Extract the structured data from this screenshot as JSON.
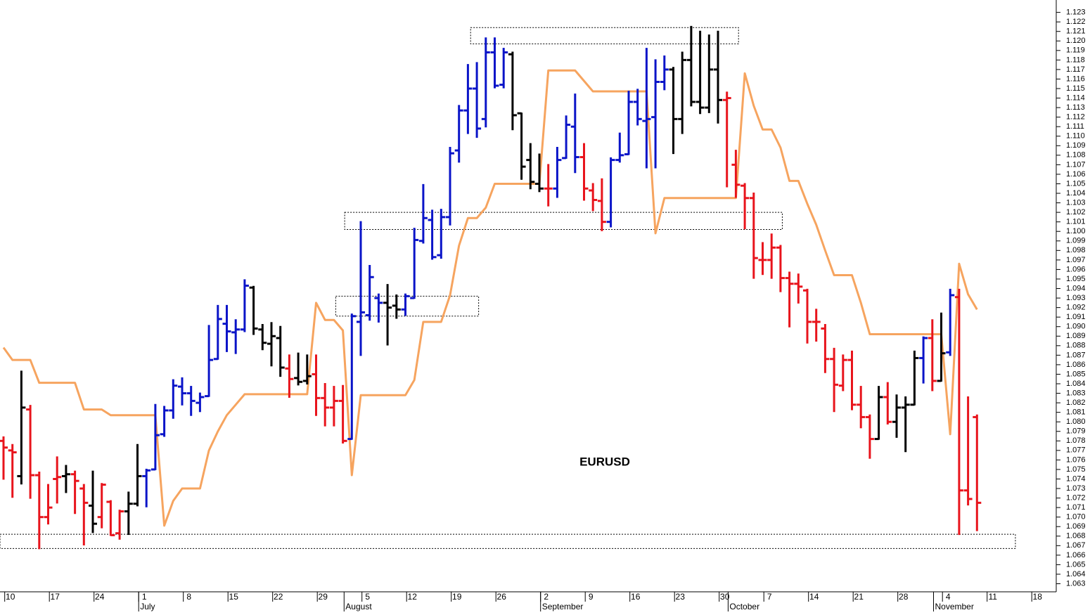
{
  "chart_data": {
    "type": "ohlc",
    "title": "EURUSD",
    "categories": [
      null,
      "10",
      null,
      null,
      null,
      null,
      "17",
      null,
      null,
      null,
      null,
      "24",
      null,
      null,
      null,
      null,
      "1",
      null,
      null,
      null,
      null,
      "8",
      null,
      null,
      null,
      null,
      "15",
      null,
      null,
      null,
      null,
      "22",
      null,
      null,
      null,
      null,
      "29",
      null,
      null,
      null,
      null,
      "5",
      null,
      null,
      null,
      null,
      "12",
      null,
      null,
      null,
      null,
      "19",
      null,
      null,
      null,
      null,
      "26",
      null,
      null,
      null,
      null,
      "2",
      null,
      null,
      null,
      null,
      "9",
      null,
      null,
      null,
      null,
      "16",
      null,
      null,
      null,
      null,
      "23",
      null,
      null,
      null,
      null,
      "30",
      null,
      null,
      null,
      null,
      "7",
      null,
      null,
      null,
      null,
      "14",
      null,
      null,
      null,
      null,
      "21",
      null,
      null,
      null,
      null,
      "28",
      null,
      null,
      null,
      null,
      "4",
      null,
      null,
      null,
      null,
      "11",
      null,
      null,
      null,
      null,
      "18",
      null
    ],
    "months": [
      null,
      null,
      null,
      null,
      null,
      null,
      null,
      null,
      null,
      null,
      null,
      null,
      null,
      null,
      null,
      null,
      "July",
      null,
      null,
      null,
      null,
      null,
      null,
      null,
      null,
      null,
      null,
      null,
      null,
      null,
      null,
      null,
      null,
      null,
      null,
      null,
      null,
      null,
      null,
      "August",
      null,
      null,
      null,
      null,
      null,
      null,
      null,
      null,
      null,
      null,
      null,
      null,
      null,
      null,
      null,
      null,
      null,
      null,
      null,
      null,
      null,
      "September",
      null,
      null,
      null,
      null,
      null,
      null,
      null,
      null,
      null,
      null,
      null,
      null,
      null,
      null,
      null,
      null,
      null,
      null,
      null,
      null,
      "October",
      null,
      null,
      null,
      null,
      null,
      null,
      null,
      null,
      null,
      null,
      null,
      null,
      null,
      null,
      null,
      null,
      null,
      null,
      null,
      null,
      null,
      null,
      "November",
      null,
      null,
      null,
      null,
      null,
      null,
      null,
      null,
      null,
      null,
      null,
      null
    ],
    "open": [
      1.078,
      1.077,
      1.0743,
      1.0813,
      1.0744,
      1.07,
      1.074,
      1.0743,
      1.0745,
      1.073,
      1.0712,
      1.07,
      1.0716,
      1.0683,
      1.0706,
      1.0714,
      1.0743,
      1.075,
      1.0787,
      1.0812,
      1.0837,
      1.083,
      1.082,
      1.0827,
      1.0866,
      1.0903,
      1.0894,
      1.0897,
      1.0941,
      1.0897,
      1.0882,
      1.0888,
      1.0856,
      1.0846,
      1.0843,
      1.085,
      1.0825,
      1.0815,
      1.0822,
      1.0782,
      1.0905,
      1.0912,
      1.093,
      1.0925,
      1.0922,
      1.0918,
      1.093,
      1.099,
      1.1012,
      1.0975,
      1.1015,
      1.1085,
      1.1127,
      1.115,
      1.1118,
      1.1188,
      1.1154,
      1.1186,
      1.1124,
      1.1075,
      1.105,
      1.1045,
      1.1045,
      1.1077,
      1.111,
      1.1078,
      1.1043,
      1.1032,
      1.101,
      1.1075,
      1.1081,
      1.1136,
      1.1116,
      1.112,
      1.1157,
      1.117,
      1.1118,
      1.118,
      1.1136,
      1.113,
      1.117,
      1.1138,
      1.107,
      1.1048,
      1.1035,
      1.097,
      1.097,
      1.0983,
      1.0951,
      1.0945,
      1.0938,
      1.0905,
      1.0898,
      1.0866,
      1.0838,
      1.0865,
      1.0818,
      1.0805,
      1.0782,
      1.0826,
      1.08,
      1.0815,
      1.0818,
      1.0867,
      1.0888,
      1.0843,
      1.0873,
      1.0931,
      1.0728,
      1.0805,
      null,
      null,
      null,
      null,
      null,
      null,
      null,
      null
    ],
    "high": [
      1.0784,
      1.0776,
      1.0853,
      1.0817,
      1.0747,
      1.0734,
      1.0763,
      1.0754,
      1.0748,
      1.0734,
      1.0748,
      1.0735,
      1.0717,
      1.0707,
      1.0726,
      1.0776,
      1.075,
      1.0818,
      1.0816,
      1.0844,
      1.0846,
      1.0837,
      1.083,
      1.0901,
      1.0922,
      1.0922,
      1.0907,
      1.0949,
      1.0942,
      1.0902,
      1.0904,
      1.09,
      1.087,
      1.0872,
      1.087,
      1.087,
      1.084,
      1.0837,
      1.0838,
      1.0913,
      1.101,
      1.0964,
      1.0934,
      1.0944,
      1.0933,
      1.0934,
      1.1003,
      1.1049,
      1.1022,
      1.1023,
      1.1088,
      1.1132,
      1.1175,
      1.1177,
      1.1203,
      1.1203,
      1.1192,
      1.1188,
      1.1124,
      1.1092,
      1.1081,
      1.107,
      1.1088,
      1.1121,
      1.1144,
      1.1092,
      1.105,
      1.1055,
      1.1077,
      1.1103,
      1.1147,
      1.1149,
      1.1192,
      1.118,
      1.1184,
      1.1172,
      1.1188,
      1.1215,
      1.121,
      1.1206,
      1.121,
      1.1146,
      1.1085,
      1.105,
      1.104,
      1.0988,
      1.0997,
      1.0985,
      1.0957,
      1.0955,
      1.0939,
      1.0918,
      1.0902,
      1.0877,
      1.087,
      1.0874,
      1.0837,
      1.0807,
      1.0837,
      1.0841,
      1.0828,
      1.0826,
      1.0874,
      1.0889,
      1.0907,
      1.0914,
      1.0939,
      1.0939,
      1.0826,
      1.0807,
      null,
      null,
      null,
      null,
      null,
      null,
      null,
      null
    ],
    "low": [
      1.074,
      1.0721,
      1.0735,
      1.072,
      1.0667,
      1.0693,
      1.0715,
      1.0726,
      1.0704,
      1.0671,
      1.0684,
      1.0689,
      1.0681,
      1.0677,
      1.0682,
      1.0712,
      1.0711,
      1.075,
      1.0785,
      1.0804,
      1.0818,
      1.0807,
      1.0811,
      1.0827,
      1.0866,
      1.0874,
      1.0872,
      1.0895,
      1.0892,
      1.0876,
      1.0859,
      1.0848,
      1.0826,
      1.0839,
      1.084,
      1.0807,
      1.0796,
      1.0796,
      1.0778,
      1.0782,
      1.087,
      1.0907,
      1.0905,
      1.0881,
      1.0909,
      1.0912,
      1.093,
      1.0988,
      1.0971,
      1.0972,
      1.1007,
      1.1073,
      1.1103,
      1.1099,
      1.111,
      1.1151,
      1.1151,
      1.1107,
      1.1055,
      1.1045,
      1.1042,
      1.1027,
      1.1036,
      1.1077,
      1.1062,
      1.1033,
      1.1022,
      1.1001,
      1.1005,
      1.1073,
      1.1081,
      1.1112,
      1.1067,
      1.1067,
      1.1149,
      1.1082,
      1.1103,
      1.1132,
      1.1124,
      1.1125,
      1.1114,
      1.1047,
      1.1036,
      1.1003,
      1.0951,
      1.0955,
      1.0951,
      1.0937,
      1.09,
      1.0925,
      1.0883,
      1.0885,
      1.0852,
      1.0811,
      1.0833,
      1.0813,
      1.0794,
      1.0762,
      1.0782,
      1.0798,
      1.0784,
      1.0769,
      1.0818,
      1.0841,
      1.0833,
      1.0843,
      1.087,
      1.0682,
      1.0713,
      1.0686,
      null,
      null,
      null,
      null,
      null,
      null,
      null,
      null
    ],
    "close": [
      1.0773,
      1.0768,
      1.0815,
      1.0744,
      1.07,
      1.071,
      1.0742,
      1.0745,
      1.0738,
      1.0715,
      1.0693,
      1.0734,
      1.0681,
      1.0706,
      1.0714,
      1.0743,
      1.0749,
      1.0786,
      1.0812,
      1.0838,
      1.083,
      1.0822,
      1.0826,
      1.0865,
      1.0908,
      1.0895,
      1.0897,
      1.0943,
      1.0898,
      1.0883,
      1.089,
      1.0857,
      1.0845,
      1.0842,
      1.0848,
      1.0825,
      1.0815,
      1.0822,
      1.078,
      1.0911,
      1.0915,
      1.0952,
      1.0925,
      1.092,
      1.0918,
      1.0932,
      1.0991,
      1.1014,
      1.0973,
      1.1015,
      1.1082,
      1.1127,
      1.115,
      1.1108,
      1.1188,
      1.1153,
      1.1188,
      1.1122,
      1.1068,
      1.1052,
      1.1045,
      1.1045,
      1.1075,
      1.1112,
      1.1078,
      1.1045,
      1.1033,
      1.101,
      1.1075,
      1.108,
      1.1136,
      1.1118,
      1.1118,
      1.1157,
      1.117,
      1.1118,
      1.118,
      1.1136,
      1.113,
      1.117,
      1.1138,
      1.114,
      1.1049,
      1.1035,
      1.0972,
      1.097,
      1.0983,
      1.0951,
      1.0945,
      1.0942,
      1.0905,
      1.0905,
      1.0866,
      1.0839,
      1.0865,
      1.0818,
      1.0805,
      1.0782,
      1.0826,
      1.08,
      1.0815,
      1.0818,
      1.0867,
      1.0888,
      1.0843,
      1.0872,
      1.0933,
      1.0728,
      1.0719,
      1.0715,
      null,
      null,
      null,
      null,
      null,
      null,
      null,
      null
    ],
    "colors": [
      "#e8141c",
      "#e8141c",
      "#000000",
      "#e8141c",
      "#e8141c",
      "#e8141c",
      "#e8141c",
      "#000000",
      "#e8141c",
      "#e8141c",
      "#000000",
      "#e8141c",
      "#e8141c",
      "#e8141c",
      "#000000",
      "#000000",
      "#0a14c8",
      "#0a14c8",
      "#0a14c8",
      "#0a14c8",
      "#0a14c8",
      "#0a14c8",
      "#0a14c8",
      "#0a14c8",
      "#0a14c8",
      "#0a14c8",
      "#0a14c8",
      "#0a14c8",
      "#000000",
      "#000000",
      "#000000",
      "#000000",
      "#e8141c",
      "#000000",
      "#000000",
      "#e8141c",
      "#e8141c",
      "#e8141c",
      "#e8141c",
      "#0a14c8",
      "#0a14c8",
      "#0a14c8",
      "#0a14c8",
      "#000000",
      "#000000",
      "#0a14c8",
      "#0a14c8",
      "#0a14c8",
      "#0a14c8",
      "#0a14c8",
      "#0a14c8",
      "#0a14c8",
      "#0a14c8",
      "#0a14c8",
      "#0a14c8",
      "#0a14c8",
      "#0a14c8",
      "#000000",
      "#000000",
      "#000000",
      "#000000",
      "#e8141c",
      "#0a14c8",
      "#0a14c8",
      "#0a14c8",
      "#e8141c",
      "#e8141c",
      "#e8141c",
      "#0a14c8",
      "#0a14c8",
      "#0a14c8",
      "#0a14c8",
      "#0a14c8",
      "#0a14c8",
      "#0a14c8",
      "#000000",
      "#000000",
      "#000000",
      "#000000",
      "#000000",
      "#000000",
      "#e8141c",
      "#e8141c",
      "#e8141c",
      "#e8141c",
      "#e8141c",
      "#e8141c",
      "#e8141c",
      "#e8141c",
      "#e8141c",
      "#e8141c",
      "#e8141c",
      "#e8141c",
      "#e8141c",
      "#e8141c",
      "#e8141c",
      "#e8141c",
      "#e8141c",
      "#000000",
      "#e8141c",
      "#000000",
      "#000000",
      "#000000",
      "#0a14c8",
      "#e8141c",
      "#000000",
      "#0a14c8",
      "#e8141c",
      "#e8141c",
      "#e8141c",
      null,
      null,
      null,
      null,
      null,
      null,
      null,
      null
    ],
    "line": {
      "color": "#f6a45f",
      "values": [
        1.0878,
        1.0865,
        1.0865,
        1.0865,
        1.0841,
        1.0841,
        1.0841,
        1.0841,
        1.0841,
        1.0813,
        1.0813,
        1.0813,
        1.0807,
        1.0807,
        1.0807,
        1.0807,
        1.0807,
        1.0807,
        1.0691,
        1.0717,
        1.073,
        1.073,
        1.073,
        1.077,
        1.079,
        1.0807,
        1.0818,
        1.0829,
        1.0829,
        1.0829,
        1.0829,
        1.0829,
        1.0829,
        1.0829,
        1.0829,
        1.0925,
        1.0907,
        1.0907,
        1.0896,
        1.0744,
        1.0828,
        1.0828,
        1.0828,
        1.0828,
        1.0828,
        1.0828,
        1.0844,
        1.0905,
        1.0905,
        1.0905,
        1.0933,
        1.0985,
        1.1014,
        1.1014,
        1.1025,
        1.105,
        1.105,
        1.105,
        1.105,
        1.105,
        1.105,
        1.1169,
        1.1169,
        1.1169,
        1.1169,
        1.1158,
        1.1147,
        1.1147,
        1.1147,
        1.1147,
        1.1147,
        1.1147,
        1.1147,
        1.0998,
        1.1035,
        1.1035,
        1.1035,
        1.1035,
        1.1035,
        1.1035,
        1.1035,
        1.1035,
        1.1035,
        1.1166,
        1.1132,
        1.1107,
        1.1107,
        1.1088,
        1.1053,
        1.1053,
        1.1029,
        1.1007,
        1.098,
        1.0954,
        1.0954,
        1.0954,
        1.0925,
        1.0892,
        1.0892,
        1.0892,
        1.0892,
        1.0892,
        1.0892,
        1.0892,
        1.0892,
        1.0892,
        1.0787,
        1.0966,
        1.0934,
        1.0918,
        null,
        null,
        null,
        null,
        null,
        null,
        null,
        null
      ]
    },
    "zones": [
      {
        "x": [
          -0.39,
          113.3
        ],
        "y": [
          1.0667,
          1.0682
        ]
      },
      {
        "x": [
          38.2,
          87.2
        ],
        "y": [
          1.1002,
          1.102
        ]
      },
      {
        "x": [
          37.2,
          53.2
        ],
        "y": [
          1.0911,
          1.0932
        ]
      },
      {
        "x": [
          52.3,
          82.3
        ],
        "y": [
          1.1197,
          1.1214
        ]
      }
    ],
    "ylim": [
      1.0623,
      1.1243
    ],
    "yticks": [
      1.063,
      1.064,
      1.065,
      1.066,
      1.067,
      1.068,
      1.069,
      {
        "value": 1.07,
        "label": "1.070"
      },
      1.071,
      1.072,
      1.073,
      1.074,
      1.075,
      1.076,
      1.077,
      1.078,
      1.079,
      {
        "value": 1.08,
        "label": "1.080"
      },
      1.081,
      1.082,
      1.083,
      1.084,
      1.085,
      1.086,
      1.087,
      1.088,
      1.089,
      {
        "value": 1.09,
        "label": "1.090"
      },
      1.091,
      1.092,
      1.093,
      1.094,
      1.095,
      1.096,
      1.097,
      1.098,
      1.099,
      {
        "value": 1.1,
        "label": "1.100"
      },
      1.101,
      1.102,
      1.103,
      1.104,
      1.105,
      1.106,
      1.107,
      1.108,
      1.109,
      {
        "value": 1.11,
        "label": "1.110"
      },
      1.111,
      1.112,
      1.113,
      1.114,
      1.115,
      1.116,
      1.117,
      1.118,
      1.119,
      {
        "value": 1.12,
        "label": "1.120"
      },
      1.121,
      1.122,
      1.123
    ],
    "grid": false
  }
}
